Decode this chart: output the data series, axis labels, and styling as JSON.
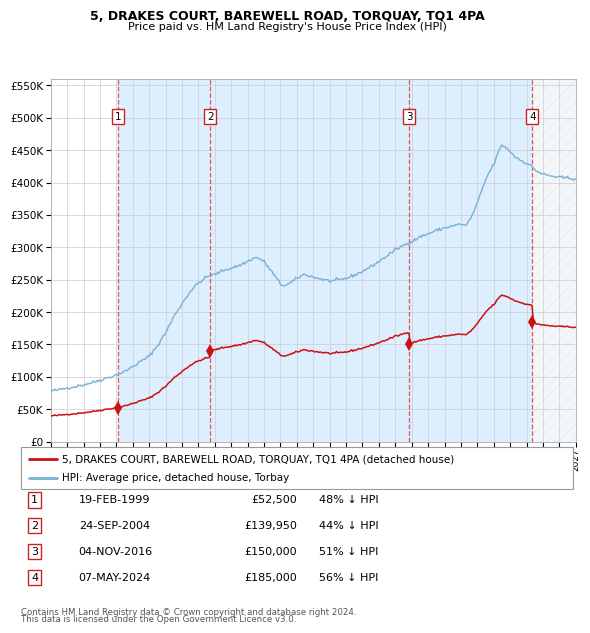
{
  "title1": "5, DRAKES COURT, BAREWELL ROAD, TORQUAY, TQ1 4PA",
  "title2": "Price paid vs. HM Land Registry's House Price Index (HPI)",
  "legend_line1": "5, DRAKES COURT, BAREWELL ROAD, TORQUAY, TQ1 4PA (detached house)",
  "legend_line2": "HPI: Average price, detached house, Torbay",
  "transactions": [
    {
      "num": 1,
      "date": "19-FEB-1999",
      "price": 52500,
      "price_str": "£52,500",
      "pct": "48% ↓ HPI",
      "year_x": 1999.12
    },
    {
      "num": 2,
      "date": "24-SEP-2004",
      "price": 139950,
      "price_str": "£139,950",
      "pct": "44% ↓ HPI",
      "year_x": 2004.73
    },
    {
      "num": 3,
      "date": "04-NOV-2016",
      "price": 150000,
      "price_str": "£150,000",
      "pct": "51% ↓ HPI",
      "year_x": 2016.84
    },
    {
      "num": 4,
      "date": "07-MAY-2024",
      "price": 185000,
      "price_str": "£185,000",
      "pct": "56% ↓ HPI",
      "year_x": 2024.35
    }
  ],
  "footer1": "Contains HM Land Registry data © Crown copyright and database right 2024.",
  "footer2": "This data is licensed under the Open Government Licence v3.0.",
  "hpi_color": "#7ab0d4",
  "red_color": "#cc1111",
  "owned_bg": "#ddeeff",
  "grid_color": "#cccccc",
  "xmin": 1995.0,
  "xmax": 2027.0,
  "ylim_top": 560000,
  "yticks": [
    0,
    50000,
    100000,
    150000,
    200000,
    250000,
    300000,
    350000,
    400000,
    450000,
    500000,
    550000
  ],
  "sale_dates": [
    1999.12,
    2004.73,
    2016.84,
    2024.35
  ],
  "sale_prices": [
    52500,
    139950,
    150000,
    185000
  ],
  "hpi_anchors": [
    [
      1995.0,
      78000
    ],
    [
      1995.5,
      80000
    ],
    [
      1996.0,
      83000
    ],
    [
      1996.5,
      85000
    ],
    [
      1997.0,
      88000
    ],
    [
      1997.5,
      91000
    ],
    [
      1998.0,
      95000
    ],
    [
      1998.5,
      99000
    ],
    [
      1999.0,
      103000
    ],
    [
      1999.5,
      108000
    ],
    [
      2000.0,
      116000
    ],
    [
      2000.5,
      124000
    ],
    [
      2001.0,
      132000
    ],
    [
      2001.5,
      148000
    ],
    [
      2002.0,
      168000
    ],
    [
      2002.5,
      193000
    ],
    [
      2003.0,
      213000
    ],
    [
      2003.5,
      232000
    ],
    [
      2004.0,
      245000
    ],
    [
      2004.5,
      254000
    ],
    [
      2005.0,
      258000
    ],
    [
      2005.3,
      262000
    ],
    [
      2005.7,
      266000
    ],
    [
      2006.0,
      268000
    ],
    [
      2006.5,
      272000
    ],
    [
      2007.0,
      278000
    ],
    [
      2007.3,
      283000
    ],
    [
      2007.6,
      284000
    ],
    [
      2008.0,
      278000
    ],
    [
      2008.3,
      268000
    ],
    [
      2008.6,
      258000
    ],
    [
      2009.0,
      243000
    ],
    [
      2009.3,
      241000
    ],
    [
      2009.6,
      245000
    ],
    [
      2010.0,
      252000
    ],
    [
      2010.4,
      258000
    ],
    [
      2010.8,
      256000
    ],
    [
      2011.0,
      254000
    ],
    [
      2011.5,
      251000
    ],
    [
      2012.0,
      248000
    ],
    [
      2012.5,
      249000
    ],
    [
      2013.0,
      252000
    ],
    [
      2013.5,
      257000
    ],
    [
      2014.0,
      263000
    ],
    [
      2014.5,
      270000
    ],
    [
      2015.0,
      278000
    ],
    [
      2015.5,
      287000
    ],
    [
      2016.0,
      296000
    ],
    [
      2016.5,
      303000
    ],
    [
      2017.0,
      309000
    ],
    [
      2017.5,
      316000
    ],
    [
      2018.0,
      321000
    ],
    [
      2018.5,
      326000
    ],
    [
      2019.0,
      330000
    ],
    [
      2019.5,
      333000
    ],
    [
      2020.0,
      336000
    ],
    [
      2020.3,
      333000
    ],
    [
      2020.6,
      345000
    ],
    [
      2021.0,
      368000
    ],
    [
      2021.3,
      390000
    ],
    [
      2021.6,
      410000
    ],
    [
      2022.0,
      428000
    ],
    [
      2022.3,
      448000
    ],
    [
      2022.5,
      458000
    ],
    [
      2022.7,
      455000
    ],
    [
      2023.0,
      448000
    ],
    [
      2023.3,
      440000
    ],
    [
      2023.6,
      435000
    ],
    [
      2024.0,
      430000
    ],
    [
      2024.3,
      425000
    ],
    [
      2024.6,
      418000
    ],
    [
      2025.0,
      413000
    ],
    [
      2025.5,
      410000
    ],
    [
      2026.0,
      408000
    ],
    [
      2026.5,
      407000
    ],
    [
      2027.0,
      406000
    ]
  ]
}
